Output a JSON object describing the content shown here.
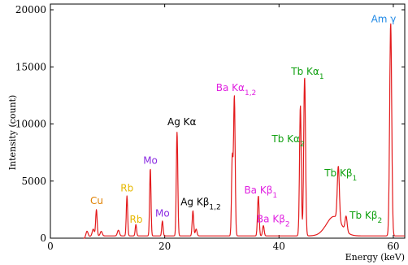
{
  "chart_data": {
    "type": "line",
    "xlabel": "Energy (keV)",
    "ylabel": "Intensity (count)",
    "xlim": [
      0,
      62
    ],
    "ylim": [
      0,
      20500
    ],
    "xticks": [
      0,
      20,
      40,
      60
    ],
    "yticks": [
      0,
      5000,
      10000,
      15000,
      20000
    ],
    "series": [
      {
        "color": "#e31a1c",
        "baseline": 200,
        "peaks": [
          {
            "x": 6.4,
            "height": 500,
            "width": 0.18
          },
          {
            "x": 7.5,
            "height": 600,
            "width": 0.18
          },
          {
            "x": 8.05,
            "height": 2300,
            "width": 0.13
          },
          {
            "x": 8.9,
            "height": 400,
            "width": 0.18
          },
          {
            "x": 11.9,
            "height": 500,
            "width": 0.18
          },
          {
            "x": 13.4,
            "height": 3500,
            "width": 0.12
          },
          {
            "x": 14.96,
            "height": 1000,
            "width": 0.12
          },
          {
            "x": 17.48,
            "height": 5900,
            "width": 0.12
          },
          {
            "x": 19.6,
            "height": 1300,
            "width": 0.12
          },
          {
            "x": 22.16,
            "height": 9100,
            "width": 0.13
          },
          {
            "x": 24.94,
            "height": 2200,
            "width": 0.13
          },
          {
            "x": 25.5,
            "height": 600,
            "width": 0.15
          },
          {
            "x": 31.82,
            "height": 6800,
            "width": 0.13
          },
          {
            "x": 32.19,
            "height": 12200,
            "width": 0.14
          },
          {
            "x": 36.38,
            "height": 3500,
            "width": 0.14
          },
          {
            "x": 37.26,
            "height": 900,
            "width": 0.14
          },
          {
            "x": 43.74,
            "height": 11400,
            "width": 0.15
          },
          {
            "x": 44.48,
            "height": 13900,
            "width": 0.16
          },
          {
            "x": 49.6,
            "height": 1700,
            "width": 1.3
          },
          {
            "x": 50.38,
            "height": 4700,
            "width": 0.18
          },
          {
            "x": 51.74,
            "height": 1300,
            "width": 0.18
          },
          {
            "x": 59.54,
            "height": 18600,
            "width": 0.18
          }
        ]
      }
    ],
    "annotations": [
      {
        "parts": [
          {
            "t": "Cu"
          }
        ],
        "x": 8.1,
        "y": 3000,
        "color": "#e08000"
      },
      {
        "parts": [
          {
            "t": "Rb"
          }
        ],
        "x": 13.4,
        "y": 4100,
        "color": "#e6b800"
      },
      {
        "parts": [
          {
            "t": "Rb"
          }
        ],
        "x": 15.0,
        "y": 1350,
        "color": "#e6b800"
      },
      {
        "parts": [
          {
            "t": "Mo"
          }
        ],
        "x": 17.5,
        "y": 6500,
        "color": "#8a2be2"
      },
      {
        "parts": [
          {
            "t": "Mo"
          }
        ],
        "x": 19.6,
        "y": 1900,
        "color": "#8a2be2"
      },
      {
        "parts": [
          {
            "t": "Ag Kα"
          }
        ],
        "x": 23.0,
        "y": 9900,
        "color": "#000000"
      },
      {
        "parts": [
          {
            "t": "Ag Kβ"
          },
          {
            "t": "1,2",
            "sub": true
          }
        ],
        "x": 26.3,
        "y": 2900,
        "color": "#000000"
      },
      {
        "parts": [
          {
            "t": "Ba Kα"
          },
          {
            "t": "1,2",
            "sub": true
          }
        ],
        "x": 32.5,
        "y": 12900,
        "color": "#e020e0"
      },
      {
        "parts": [
          {
            "t": "Ba Kβ"
          },
          {
            "t": "1",
            "sub": true
          }
        ],
        "x": 36.8,
        "y": 3900,
        "color": "#e020e0"
      },
      {
        "parts": [
          {
            "t": "Ba Kβ"
          },
          {
            "t": "2",
            "sub": true
          }
        ],
        "x": 39.0,
        "y": 1400,
        "color": "#e020e0"
      },
      {
        "parts": [
          {
            "t": "Tb Kα"
          },
          {
            "t": "1",
            "sub": true
          }
        ],
        "x": 45.0,
        "y": 14300,
        "color": "#10a010"
      },
      {
        "parts": [
          {
            "t": "Tb Kα"
          },
          {
            "t": "2",
            "sub": true
          }
        ],
        "x": 41.6,
        "y": 8400,
        "color": "#10a010"
      },
      {
        "parts": [
          {
            "t": "Tb Kβ"
          },
          {
            "t": "1",
            "sub": true
          }
        ],
        "x": 50.8,
        "y": 5400,
        "color": "#10a010"
      },
      {
        "parts": [
          {
            "t": "Tb Kβ"
          },
          {
            "t": "2",
            "sub": true
          }
        ],
        "x": 55.2,
        "y": 1700,
        "color": "#10a010"
      },
      {
        "parts": [
          {
            "t": "Am γ"
          }
        ],
        "x": 58.3,
        "y": 18900,
        "color": "#1e88e5"
      }
    ]
  }
}
